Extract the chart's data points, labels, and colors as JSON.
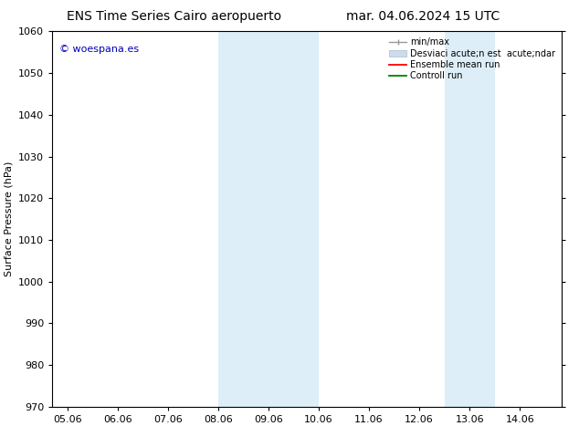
{
  "title_left": "ENS Time Series Cairo aeropuerto",
  "title_right": "mar. 04.06.2024 15 UTC",
  "ylabel": "Surface Pressure (hPa)",
  "xlim": [
    4.7,
    14.83
  ],
  "ylim": [
    970,
    1060
  ],
  "yticks": [
    970,
    980,
    990,
    1000,
    1010,
    1020,
    1030,
    1040,
    1050,
    1060
  ],
  "xtick_labels": [
    "05.06",
    "06.06",
    "07.06",
    "08.06",
    "09.06",
    "10.06",
    "11.06",
    "12.06",
    "13.06",
    "14.06"
  ],
  "xtick_positions": [
    5.0,
    6.0,
    7.0,
    8.0,
    9.0,
    10.0,
    11.0,
    12.0,
    13.0,
    14.0
  ],
  "shaded_bands": [
    {
      "xmin": 8.0,
      "xmax": 9.0,
      "color": "#ddeef8"
    },
    {
      "xmin": 9.0,
      "xmax": 10.0,
      "color": "#ddeef8"
    },
    {
      "xmin": 12.5,
      "xmax": 13.5,
      "color": "#ddeef8"
    }
  ],
  "watermark_text": "© woespana.es",
  "watermark_color": "#0000bb",
  "background_color": "#ffffff",
  "title_fontsize": 10,
  "axis_fontsize": 8,
  "tick_fontsize": 8,
  "legend_label_minmax": "min/max",
  "legend_label_std": "Desviaci acute;n est  acute;ndar",
  "legend_label_ensemble": "Ensemble mean run",
  "legend_label_control": "Controll run"
}
